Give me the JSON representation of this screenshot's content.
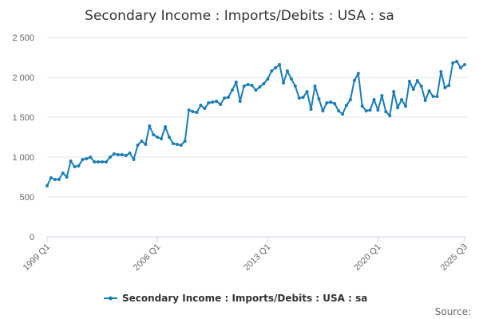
{
  "colors": {
    "series": "#1a7db8",
    "grid": "#e6e6e6",
    "axis": "#ccd6eb",
    "text": "#333333",
    "muted": "#666666"
  },
  "footer": {
    "source_label": "Source:"
  },
  "chart_data": {
    "type": "line",
    "title": "Secondary Income : Imports/Debits : USA : sa",
    "xlabel": "",
    "ylabel": "",
    "ylim": [
      0,
      2500
    ],
    "y_ticks": [
      0,
      500,
      1000,
      1500,
      2000,
      2500
    ],
    "y_tick_labels": [
      "0",
      "500",
      "1 000",
      "1 500",
      "2 000",
      "2 500"
    ],
    "x_ticks": [
      {
        "index": 0,
        "label": "1999 Q1"
      },
      {
        "index": 28,
        "label": "2006 Q1"
      },
      {
        "index": 56,
        "label": "2013 Q1"
      },
      {
        "index": 84,
        "label": "2020 Q1"
      },
      {
        "index": 106,
        "label": "2025 Q3"
      }
    ],
    "grid": true,
    "legend": "bottom-center",
    "series": [
      {
        "name": "Secondary Income : Imports/Debits : USA : sa",
        "values": [
          640,
          740,
          720,
          720,
          800,
          750,
          950,
          880,
          890,
          970,
          980,
          1000,
          940,
          940,
          940,
          940,
          1000,
          1040,
          1030,
          1030,
          1020,
          1050,
          970,
          1150,
          1200,
          1160,
          1390,
          1280,
          1250,
          1230,
          1380,
          1250,
          1170,
          1160,
          1150,
          1200,
          1590,
          1570,
          1560,
          1650,
          1610,
          1680,
          1690,
          1700,
          1660,
          1740,
          1750,
          1840,
          1940,
          1700,
          1890,
          1910,
          1900,
          1840,
          1880,
          1920,
          1980,
          2080,
          2120,
          2160,
          1930,
          2080,
          1980,
          1890,
          1740,
          1750,
          1820,
          1600,
          1890,
          1730,
          1580,
          1680,
          1690,
          1670,
          1580,
          1540,
          1650,
          1720,
          1960,
          2050,
          1640,
          1580,
          1590,
          1720,
          1590,
          1770,
          1570,
          1520,
          1820,
          1620,
          1720,
          1640,
          1950,
          1850,
          1960,
          1890,
          1710,
          1830,
          1760,
          1760,
          2070,
          1870,
          1900,
          2180,
          2200,
          2120,
          2160
        ]
      }
    ]
  }
}
